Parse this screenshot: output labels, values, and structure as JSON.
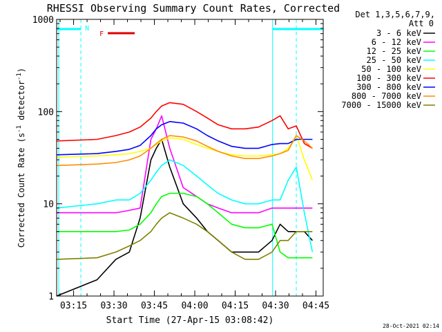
{
  "chart_data": {
    "type": "line",
    "title": "RHESSI Observing Summary Count Rates, Corrected",
    "xlabel": "Start Time (27-Apr-15 03:08:42)",
    "ylabel": "Corrected Count Rate (s-1 detector-1)",
    "yscale": "log",
    "ylim": [
      1,
      1000
    ],
    "xlim_min": [
      0,
      99
    ],
    "yticks": [
      "1",
      "10",
      "100",
      "1000"
    ],
    "xticks": [
      {
        "min": 6.3,
        "label": "03:15"
      },
      {
        "min": 21.3,
        "label": "03:30"
      },
      {
        "min": 36.3,
        "label": "03:45"
      },
      {
        "min": 51.3,
        "label": "04:00"
      },
      {
        "min": 66.3,
        "label": "04:15"
      },
      {
        "min": 81.3,
        "label": "04:30"
      },
      {
        "min": 96.3,
        "label": "04:45"
      }
    ],
    "legend_header": [
      "Det 1,3,5,6,7,9,",
      "Att 0"
    ],
    "legend_position": "right",
    "x_min": [
      0,
      15,
      22,
      27,
      31,
      35,
      37,
      39,
      42,
      47,
      52,
      56,
      60,
      65,
      70,
      75,
      80,
      83,
      86,
      89,
      92,
      95
    ],
    "series": [
      {
        "name": "3 - 6 keV",
        "color": "#000000",
        "values": [
          1,
          1.5,
          2.5,
          3,
          7,
          30,
          40,
          50,
          25,
          10,
          7,
          5,
          4,
          3,
          3,
          3,
          4,
          6,
          5,
          5,
          5,
          4
        ]
      },
      {
        "name": "6 - 12 keV",
        "color": "#ff00ff",
        "values": [
          8,
          8,
          8,
          8.5,
          9,
          50,
          65,
          90,
          40,
          15,
          12,
          10,
          9,
          8,
          8,
          8,
          9,
          9,
          9,
          9,
          9,
          9
        ]
      },
      {
        "name": "12 - 25 keV",
        "color": "#00ff00",
        "values": [
          5,
          5,
          5,
          5.2,
          6,
          8,
          10,
          12,
          13,
          13,
          12,
          10,
          8,
          6,
          5.5,
          5.5,
          6,
          3,
          2.6,
          2.6,
          2.6,
          2.6
        ]
      },
      {
        "name": "25 - 50 keV",
        "color": "#00ffff",
        "values": [
          9,
          10,
          11,
          11,
          13,
          18,
          22,
          26,
          30,
          26,
          20,
          16,
          13,
          11,
          10,
          10,
          11,
          11,
          18,
          25,
          8,
          3
        ]
      },
      {
        "name": "50 - 100 keV",
        "color": "#ffff00",
        "values": [
          32,
          33,
          34,
          35,
          37,
          40,
          44,
          48,
          52,
          50,
          44,
          40,
          37,
          34,
          33,
          33,
          34,
          35,
          40,
          55,
          30,
          18
        ]
      },
      {
        "name": "100 - 300 keV",
        "color": "#ff0000",
        "values": [
          48,
          50,
          55,
          60,
          68,
          85,
          100,
          115,
          125,
          120,
          100,
          85,
          72,
          65,
          65,
          68,
          80,
          90,
          65,
          70,
          45,
          40
        ]
      },
      {
        "name": "300 - 800 keV",
        "color": "#0000ff",
        "values": [
          34,
          35,
          37,
          39,
          43,
          55,
          65,
          72,
          78,
          75,
          65,
          55,
          48,
          42,
          40,
          40,
          44,
          45,
          45,
          50,
          50,
          50
        ]
      },
      {
        "name": "800 - 7000 keV",
        "color": "#ff8c00",
        "values": [
          26,
          27,
          28,
          30,
          33,
          40,
          45,
          50,
          55,
          53,
          48,
          42,
          37,
          33,
          31,
          31,
          33,
          35,
          38,
          55,
          48,
          40
        ]
      },
      {
        "name": "7000 - 15000 keV",
        "color": "#808000",
        "values": [
          2.5,
          2.6,
          3,
          3.5,
          4,
          5,
          6,
          7,
          8,
          7,
          6,
          5,
          4,
          3,
          2.5,
          2.5,
          3,
          4,
          4,
          5,
          5,
          5
        ]
      }
    ],
    "markers": {
      "cyan_verticals_min": [
        0.8,
        9,
        80.2,
        89
      ],
      "N_bar": {
        "label": "N",
        "color": "#00ffff",
        "segments_min": [
          [
            0,
            9
          ],
          [
            80.2,
            99
          ]
        ]
      },
      "F_bar": {
        "label": "F",
        "color": "#dd0000",
        "segment_min": [
          19,
          29
        ]
      }
    }
  },
  "footer_timestamp": "28-Oct-2021 02:14"
}
